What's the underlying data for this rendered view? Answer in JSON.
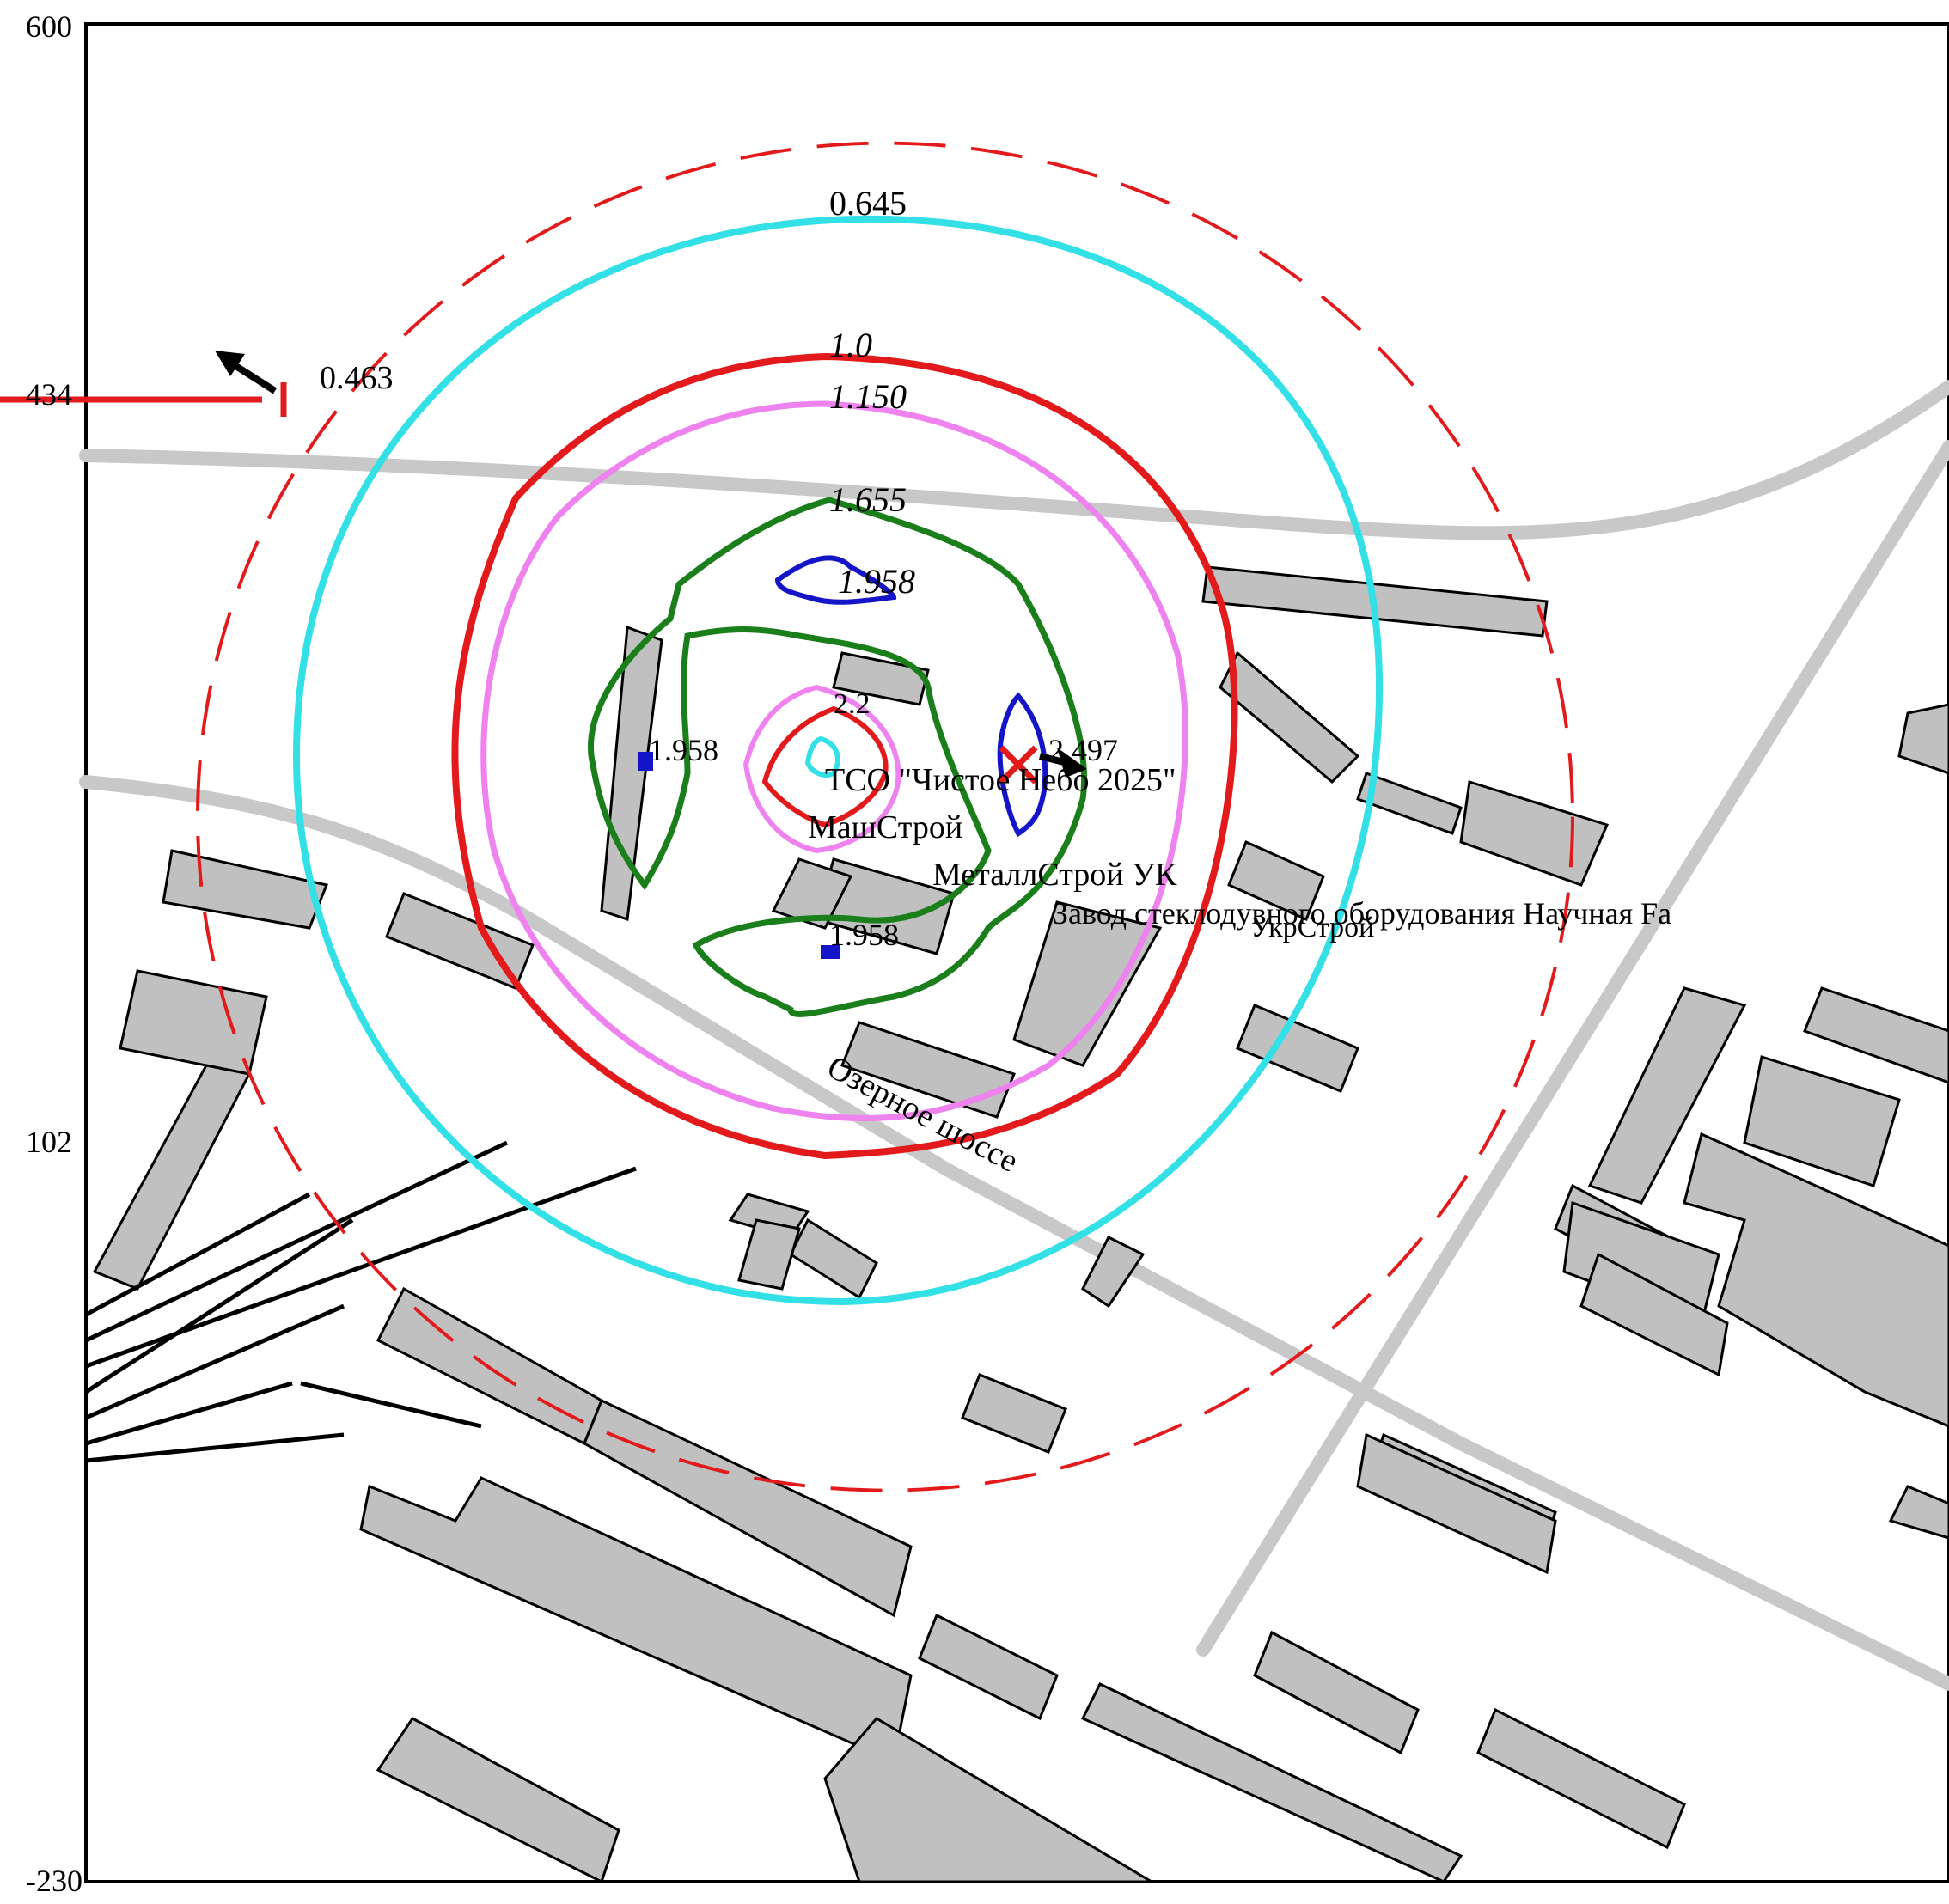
{
  "y_axis": {
    "ticks": [
      "600",
      "434",
      "102",
      "-230"
    ]
  },
  "contours": [
    {
      "label": "0.645",
      "color": "#33e0e6"
    },
    {
      "label": "1.0",
      "color": "#e31a1c"
    },
    {
      "label": "1.150",
      "color": "#ee82ee"
    },
    {
      "label": "1.655",
      "color": "#1a7f1a"
    },
    {
      "label": "1.958",
      "color": "#1414c8"
    },
    {
      "label": "2.2",
      "color": "#e31a1c"
    }
  ],
  "values": {
    "max_point": "0.463",
    "point_left": "1.958",
    "point_bottom": "1.958",
    "point_center": "2.497",
    "max_label": "2.2"
  },
  "labels": {
    "tso": "ТСО \"Чистое Небо 2025\"",
    "mash": "МашСтрой",
    "metal": "МеталлСтрой УК",
    "zavod": "Завод стеклодувного оборудования Научная Fa",
    "ukr": "УкрСтрой",
    "road": "Озерное шоссе"
  },
  "colors": {
    "building_fill": "#c0c0c0",
    "road": "#c8c8c8",
    "outer_dashed": "#e31a1c",
    "marker": "#e31a1c",
    "arrow": "#000000"
  }
}
